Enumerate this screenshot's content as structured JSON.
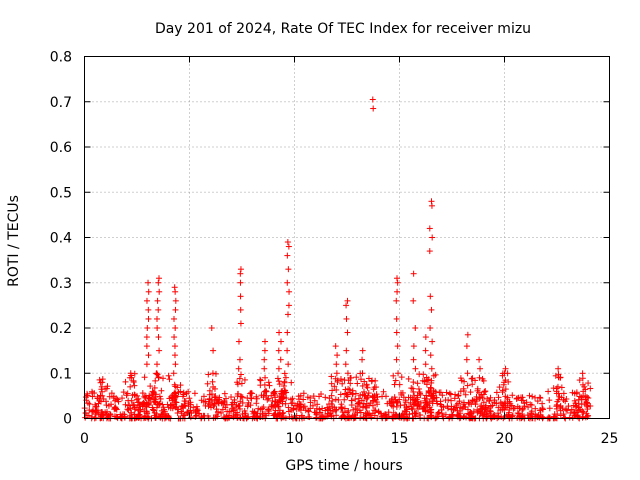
{
  "chart_data": {
    "type": "scatter",
    "title": "Day 201 of 2024, Rate Of TEC Index for receiver mizu",
    "xlabel": "GPS time / hours",
    "ylabel": "ROTI / TECUs",
    "xlim": [
      0,
      25
    ],
    "ylim": [
      0,
      0.8
    ],
    "xticks": [
      "0",
      "5",
      "10",
      "15",
      "20",
      "25"
    ],
    "yticks": [
      "0",
      "0.1",
      "0.2",
      "0.3",
      "0.4",
      "0.5",
      "0.6",
      "0.7",
      "0.8"
    ],
    "xtick_values": [
      0,
      5,
      10,
      15,
      20,
      25
    ],
    "ytick_values": [
      0,
      0.1,
      0.2,
      0.3,
      0.4,
      0.5,
      0.6,
      0.7,
      0.8
    ],
    "grid": true,
    "marker": "+",
    "color": "#ff0000",
    "baseline": {
      "x_range": [
        0,
        24
      ],
      "y_range": [
        0,
        0.06
      ]
    },
    "bursts": [
      {
        "x": 0.8,
        "values": [
          0.08,
          0.07,
          0.05
        ]
      },
      {
        "x": 2.2,
        "values": [
          0.1,
          0.09,
          0.07
        ]
      },
      {
        "x": 3.0,
        "values": [
          0.3,
          0.28,
          0.26,
          0.24,
          0.22,
          0.2,
          0.18,
          0.16,
          0.14,
          0.12
        ]
      },
      {
        "x": 3.5,
        "values": [
          0.31,
          0.3,
          0.28,
          0.26,
          0.24,
          0.22,
          0.2,
          0.18,
          0.15,
          0.12,
          0.1
        ]
      },
      {
        "x": 4.3,
        "values": [
          0.29,
          0.28,
          0.26,
          0.24,
          0.22,
          0.2,
          0.18,
          0.16,
          0.14,
          0.12,
          0.1
        ]
      },
      {
        "x": 6.1,
        "values": [
          0.2,
          0.15,
          0.1
        ]
      },
      {
        "x": 7.4,
        "values": [
          0.33,
          0.32,
          0.3,
          0.27,
          0.24,
          0.21,
          0.17,
          0.13,
          0.11
        ]
      },
      {
        "x": 8.6,
        "values": [
          0.17,
          0.15,
          0.13,
          0.11,
          0.09
        ]
      },
      {
        "x": 9.3,
        "values": [
          0.19,
          0.17,
          0.15,
          0.13,
          0.11
        ]
      },
      {
        "x": 9.7,
        "values": [
          0.39,
          0.38,
          0.36,
          0.33,
          0.3,
          0.28,
          0.25,
          0.23,
          0.19,
          0.15,
          0.12
        ]
      },
      {
        "x": 12.0,
        "values": [
          0.16,
          0.14,
          0.12,
          0.1
        ]
      },
      {
        "x": 12.5,
        "values": [
          0.26,
          0.25,
          0.22,
          0.19,
          0.15,
          0.12,
          0.1
        ]
      },
      {
        "x": 13.2,
        "values": [
          0.15,
          0.13,
          0.1
        ]
      },
      {
        "x": 13.7,
        "values": [
          0.705,
          0.685
        ]
      },
      {
        "x": 14.9,
        "values": [
          0.31,
          0.3,
          0.28,
          0.26,
          0.22,
          0.19,
          0.16,
          0.13,
          0.1
        ]
      },
      {
        "x": 15.7,
        "values": [
          0.32,
          0.26,
          0.2,
          0.16,
          0.13,
          0.11
        ]
      },
      {
        "x": 16.2,
        "values": [
          0.18,
          0.15,
          0.12
        ]
      },
      {
        "x": 16.5,
        "values": [
          0.48,
          0.47,
          0.42,
          0.4,
          0.37,
          0.27,
          0.24,
          0.2,
          0.17,
          0.14,
          0.11
        ]
      },
      {
        "x": 18.2,
        "values": [
          0.185,
          0.16,
          0.13,
          0.1
        ]
      },
      {
        "x": 18.8,
        "values": [
          0.13,
          0.11,
          0.09
        ]
      },
      {
        "x": 20.0,
        "values": [
          0.11,
          0.1,
          0.08
        ]
      },
      {
        "x": 22.6,
        "values": [
          0.11,
          0.09,
          0.07
        ]
      },
      {
        "x": 23.8,
        "values": [
          0.07,
          0.06,
          0.05
        ]
      }
    ]
  }
}
